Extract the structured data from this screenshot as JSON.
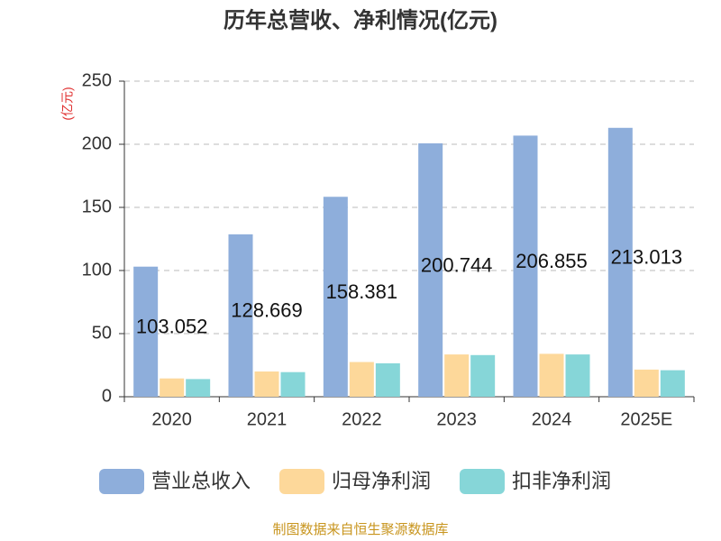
{
  "chart_data": {
    "type": "bar",
    "title": "历年总营收、净利情况(亿元)",
    "y_label": "(亿元)",
    "categories": [
      "2020",
      "2021",
      "2022",
      "2023",
      "2024",
      "2025E"
    ],
    "series": [
      {
        "name": "营业总收入",
        "color": "#8eaedb",
        "values": [
          103.052,
          128.669,
          158.381,
          200.744,
          206.855,
          213.013
        ],
        "show_labels": true
      },
      {
        "name": "归母净利润",
        "color": "#fdd89a",
        "values": [
          14.5,
          20,
          27.5,
          33.5,
          34,
          21.5
        ]
      },
      {
        "name": "扣非净利润",
        "color": "#86d6d8",
        "values": [
          14,
          19.5,
          26.5,
          33,
          33.5,
          21
        ]
      }
    ],
    "ylim": [
      0,
      250
    ],
    "yticks": [
      0,
      50,
      100,
      150,
      200,
      250
    ],
    "grid": true,
    "source": "制图数据来自恒生聚源数据库"
  }
}
